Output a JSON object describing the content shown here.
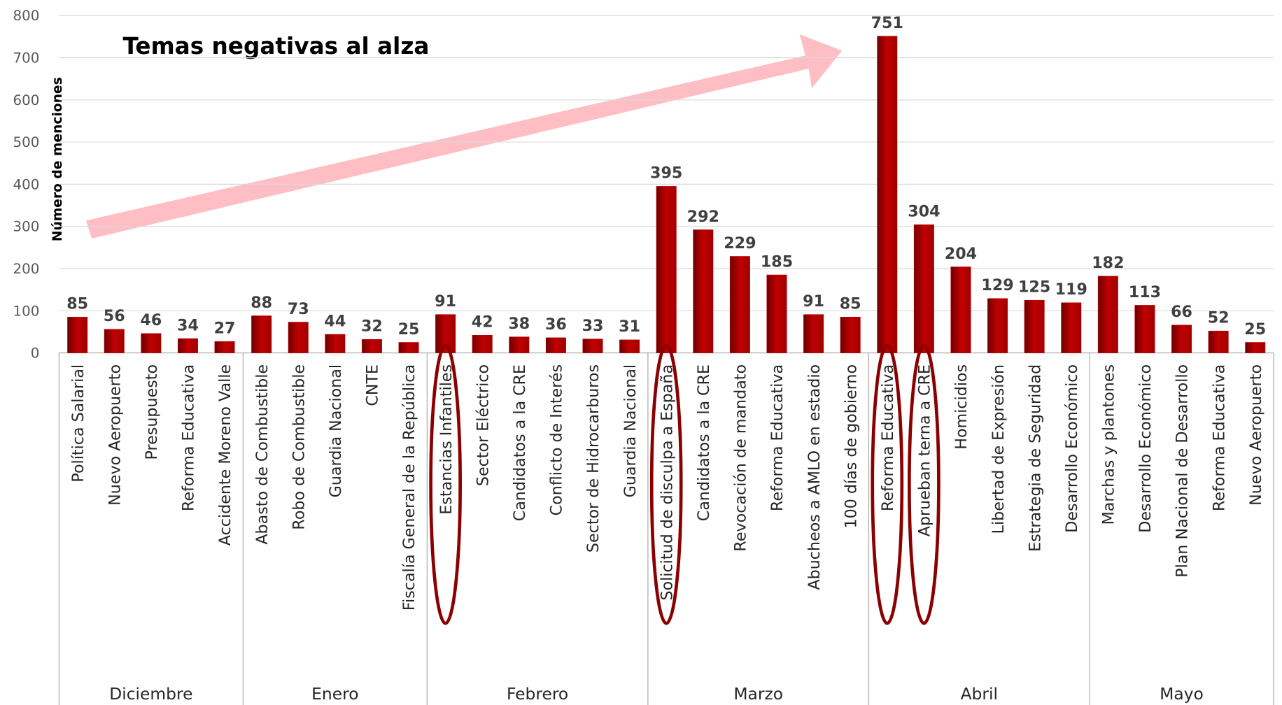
{
  "chart_data": {
    "type": "bar",
    "annotation": "Temas negativas al alza",
    "y_label": "Número de menciones",
    "color": "#c00000",
    "ylim": [
      0,
      800
    ],
    "yticks": [
      0,
      100,
      200,
      300,
      400,
      500,
      600,
      700,
      800
    ],
    "grid": true,
    "groups": [
      {
        "name": "Diciembre",
        "categories": [
          "Política Salarial",
          "Nuevo Aeropuerto",
          "Presupuesto",
          "Reforma Educativa",
          "Accidente Moreno Valle"
        ],
        "values": [
          85,
          56,
          46,
          34,
          27
        ]
      },
      {
        "name": "Enero",
        "categories": [
          "Abasto de Combustible",
          "Robo de Combustible",
          "Guardia Nacional",
          "CNTE",
          "Fiscalía General de la República"
        ],
        "values": [
          88,
          73,
          44,
          32,
          25
        ]
      },
      {
        "name": "Febrero",
        "categories": [
          "Estancias Infantiles",
          "Sector Eléctrico",
          "Candidatos a la CRE",
          "Conflicto de Interés",
          "Sector de Hidrocarburos",
          "Guardia Nacional"
        ],
        "values": [
          91,
          42,
          38,
          36,
          33,
          31
        ]
      },
      {
        "name": "Marzo",
        "categories": [
          "Solicitud de disculpa a España",
          "Candidatos a la CRE",
          "Revocación de mandato",
          "Reforma Educativa",
          "Abucheos a AMLO en estadio",
          "100 días de gobierno"
        ],
        "values": [
          395,
          292,
          229,
          185,
          91,
          85
        ]
      },
      {
        "name": "Abril",
        "categories": [
          "Reforma Educativa",
          "Aprueban terna a CRE",
          "Homicidios",
          "Libertad de Expresión",
          "Estrategia de Seguridad",
          "Desarrollo Económico"
        ],
        "values": [
          751,
          304,
          204,
          129,
          125,
          119
        ]
      },
      {
        "name": "Mayo",
        "categories": [
          "Marchas y plantones",
          "Desarrollo Económico",
          "Plan Nacional de Desarrollo",
          "Reforma Educativa",
          "Nuevo Aeropuerto"
        ],
        "values": [
          182,
          113,
          66,
          52,
          25
        ]
      }
    ]
  }
}
